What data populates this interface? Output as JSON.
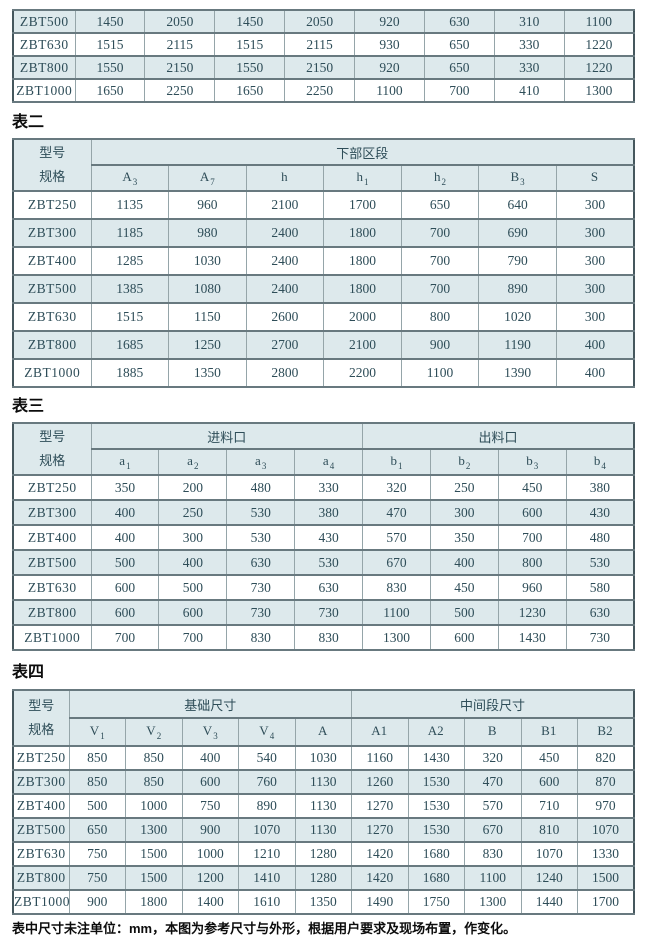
{
  "common": {
    "corner_top": "型号",
    "corner_bottom": "规格"
  },
  "colors": {
    "row_shade": "#dde9ec",
    "cell_text": "#2e4d58",
    "label_text": "#0c0c0c",
    "border_inner_vertical": "#95a5a9",
    "border_inner_horizontal": "#68797f",
    "border_outer": "#45575d"
  },
  "t1": {
    "rows": [
      [
        "ZBT500",
        "1450",
        "2050",
        "1450",
        "2050",
        "920",
        "630",
        "310",
        "1100"
      ],
      [
        "ZBT630",
        "1515",
        "2115",
        "1515",
        "2115",
        "930",
        "650",
        "330",
        "1220"
      ],
      [
        "ZBT800",
        "1550",
        "2150",
        "1550",
        "2150",
        "920",
        "650",
        "330",
        "1220"
      ],
      [
        "ZBT1000",
        "1650",
        "2250",
        "1650",
        "2250",
        "1100",
        "700",
        "410",
        "1300"
      ]
    ]
  },
  "t2": {
    "label": "表二",
    "group": "下部区段",
    "cols": [
      {
        "b": "A",
        "s": "3"
      },
      {
        "b": "A",
        "s": "7"
      },
      {
        "b": "h",
        "s": ""
      },
      {
        "b": "h",
        "s": "1"
      },
      {
        "b": "h",
        "s": "2"
      },
      {
        "b": "B",
        "s": "3"
      },
      {
        "b": "S",
        "s": ""
      }
    ],
    "rows": [
      [
        "ZBT250",
        "1135",
        "960",
        "2100",
        "1700",
        "650",
        "640",
        "300"
      ],
      [
        "ZBT300",
        "1185",
        "980",
        "2400",
        "1800",
        "700",
        "690",
        "300"
      ],
      [
        "ZBT400",
        "1285",
        "1030",
        "2400",
        "1800",
        "700",
        "790",
        "300"
      ],
      [
        "ZBT500",
        "1385",
        "1080",
        "2400",
        "1800",
        "700",
        "890",
        "300"
      ],
      [
        "ZBT630",
        "1515",
        "1150",
        "2600",
        "2000",
        "800",
        "1020",
        "300"
      ],
      [
        "ZBT800",
        "1685",
        "1250",
        "2700",
        "2100",
        "900",
        "1190",
        "400"
      ],
      [
        "ZBT1000",
        "1885",
        "1350",
        "2800",
        "2200",
        "1100",
        "1390",
        "400"
      ]
    ]
  },
  "t3": {
    "label": "表三",
    "groups": [
      "进料口",
      "出料口"
    ],
    "cols": [
      {
        "b": "a",
        "s": "1"
      },
      {
        "b": "a",
        "s": "2"
      },
      {
        "b": "a",
        "s": "3"
      },
      {
        "b": "a",
        "s": "4"
      },
      {
        "b": "b",
        "s": "1"
      },
      {
        "b": "b",
        "s": "2"
      },
      {
        "b": "b",
        "s": "3"
      },
      {
        "b": "b",
        "s": "4"
      }
    ],
    "rows": [
      [
        "ZBT250",
        "350",
        "200",
        "480",
        "330",
        "320",
        "250",
        "450",
        "380"
      ],
      [
        "ZBT300",
        "400",
        "250",
        "530",
        "380",
        "470",
        "300",
        "600",
        "430"
      ],
      [
        "ZBT400",
        "400",
        "300",
        "530",
        "430",
        "570",
        "350",
        "700",
        "480"
      ],
      [
        "ZBT500",
        "500",
        "400",
        "630",
        "530",
        "670",
        "400",
        "800",
        "530"
      ],
      [
        "ZBT630",
        "600",
        "500",
        "730",
        "630",
        "830",
        "450",
        "960",
        "580"
      ],
      [
        "ZBT800",
        "600",
        "600",
        "730",
        "730",
        "1100",
        "500",
        "1230",
        "630"
      ],
      [
        "ZBT1000",
        "700",
        "700",
        "830",
        "830",
        "1300",
        "600",
        "1430",
        "730"
      ]
    ]
  },
  "t4": {
    "label": "表四",
    "groups": [
      "基础尺寸",
      "中间段尺寸"
    ],
    "cols": [
      {
        "b": "V",
        "s": "1"
      },
      {
        "b": "V",
        "s": "2"
      },
      {
        "b": "V",
        "s": "3"
      },
      {
        "b": "V",
        "s": "4"
      },
      {
        "b": "A",
        "s": ""
      },
      {
        "b": "A1",
        "s": ""
      },
      {
        "b": "A2",
        "s": ""
      },
      {
        "b": "B",
        "s": ""
      },
      {
        "b": "B1",
        "s": ""
      },
      {
        "b": "B2",
        "s": ""
      }
    ],
    "rows": [
      [
        "ZBT250",
        "850",
        "850",
        "400",
        "540",
        "1030",
        "1160",
        "1430",
        "320",
        "450",
        "820"
      ],
      [
        "ZBT300",
        "850",
        "850",
        "600",
        "760",
        "1130",
        "1260",
        "1530",
        "470",
        "600",
        "870"
      ],
      [
        "ZBT400",
        "500",
        "1000",
        "750",
        "890",
        "1130",
        "1270",
        "1530",
        "570",
        "710",
        "970"
      ],
      [
        "ZBT500",
        "650",
        "1300",
        "900",
        "1070",
        "1130",
        "1270",
        "1530",
        "670",
        "810",
        "1070"
      ],
      [
        "ZBT630",
        "750",
        "1500",
        "1000",
        "1210",
        "1280",
        "1420",
        "1680",
        "830",
        "1070",
        "1330"
      ],
      [
        "ZBT800",
        "750",
        "1500",
        "1200",
        "1410",
        "1280",
        "1420",
        "1680",
        "1100",
        "1240",
        "1500"
      ],
      [
        "ZBT1000",
        "900",
        "1800",
        "1400",
        "1610",
        "1350",
        "1490",
        "1750",
        "1300",
        "1440",
        "1700"
      ]
    ]
  },
  "footnote": "表中尺寸未注单位：mm，本图为参考尺寸与外形，根据用户要求及现场布置，作变化。"
}
